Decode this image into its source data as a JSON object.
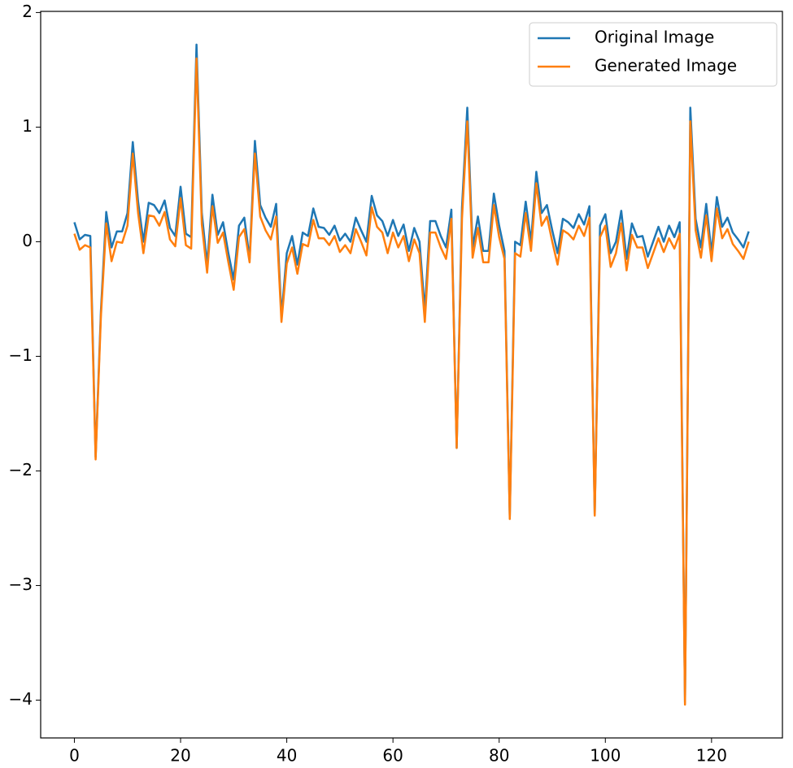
{
  "chart_data": {
    "type": "line",
    "x": [
      0,
      1,
      2,
      3,
      4,
      5,
      6,
      7,
      8,
      9,
      10,
      11,
      12,
      13,
      14,
      15,
      16,
      17,
      18,
      19,
      20,
      21,
      22,
      23,
      24,
      25,
      26,
      27,
      28,
      29,
      30,
      31,
      32,
      33,
      34,
      35,
      36,
      37,
      38,
      39,
      40,
      41,
      42,
      43,
      44,
      45,
      46,
      47,
      48,
      49,
      50,
      51,
      52,
      53,
      54,
      55,
      56,
      57,
      58,
      59,
      60,
      61,
      62,
      63,
      64,
      65,
      66,
      67,
      68,
      69,
      70,
      71,
      72,
      73,
      74,
      75,
      76,
      77,
      78,
      79,
      80,
      81,
      82,
      83,
      84,
      85,
      86,
      87,
      88,
      89,
      90,
      91,
      92,
      93,
      94,
      95,
      96,
      97,
      98,
      99,
      100,
      101,
      102,
      103,
      104,
      105,
      106,
      107,
      108,
      109,
      110,
      111,
      112,
      113,
      114,
      115,
      116,
      117,
      118,
      119,
      120,
      121,
      122,
      123,
      124,
      125,
      126,
      127
    ],
    "series": [
      {
        "name": "Original Image",
        "color": "#1f77b4",
        "values": [
          0.17,
          0.02,
          0.06,
          0.05,
          -1.88,
          -0.6,
          0.26,
          -0.05,
          0.09,
          0.09,
          0.25,
          0.87,
          0.35,
          0.0,
          0.34,
          0.32,
          0.25,
          0.36,
          0.12,
          0.05,
          0.48,
          0.07,
          0.04,
          1.72,
          0.25,
          -0.2,
          0.41,
          0.06,
          0.17,
          -0.1,
          -0.33,
          0.14,
          0.21,
          -0.15,
          0.88,
          0.32,
          0.21,
          0.13,
          0.33,
          -0.65,
          -0.1,
          0.05,
          -0.2,
          0.08,
          0.05,
          0.29,
          0.13,
          0.12,
          0.06,
          0.14,
          0.01,
          0.07,
          0.0,
          0.21,
          0.1,
          0.0,
          0.4,
          0.23,
          0.18,
          0.05,
          0.19,
          0.05,
          0.15,
          -0.08,
          0.12,
          0.0,
          -0.6,
          0.18,
          0.18,
          0.05,
          -0.05,
          0.28,
          -1.8,
          0.3,
          1.17,
          -0.05,
          0.22,
          -0.08,
          -0.08,
          0.42,
          0.14,
          -0.08,
          -2.4,
          0.0,
          -0.03,
          0.35,
          0.0,
          0.61,
          0.25,
          0.32,
          0.1,
          -0.1,
          0.2,
          0.17,
          0.12,
          0.24,
          0.15,
          0.31,
          -2.38,
          0.14,
          0.24,
          -0.1,
          0.0,
          0.27,
          -0.15,
          0.16,
          0.04,
          0.05,
          -0.13,
          0.0,
          0.13,
          0.0,
          0.14,
          0.04,
          0.17,
          -4.02,
          1.17,
          0.2,
          -0.05,
          0.33,
          -0.1,
          0.39,
          0.13,
          0.21,
          0.08,
          0.02,
          -0.05,
          0.09
        ]
      },
      {
        "name": "Generated Image",
        "color": "#ff7f0e",
        "values": [
          0.07,
          -0.07,
          -0.03,
          -0.05,
          -1.9,
          -0.65,
          0.16,
          -0.17,
          0.0,
          -0.01,
          0.14,
          0.77,
          0.25,
          -0.1,
          0.23,
          0.22,
          0.14,
          0.26,
          0.02,
          -0.04,
          0.38,
          -0.03,
          -0.06,
          1.6,
          0.15,
          -0.27,
          0.31,
          -0.01,
          0.08,
          -0.18,
          -0.42,
          0.04,
          0.11,
          -0.18,
          0.77,
          0.22,
          0.1,
          0.02,
          0.22,
          -0.7,
          -0.19,
          -0.05,
          -0.28,
          -0.02,
          -0.04,
          0.19,
          0.03,
          0.03,
          -0.03,
          0.05,
          -0.09,
          -0.03,
          -0.1,
          0.11,
          0.0,
          -0.12,
          0.3,
          0.13,
          0.08,
          -0.1,
          0.08,
          -0.05,
          0.05,
          -0.17,
          0.02,
          -0.1,
          -0.7,
          0.08,
          0.08,
          -0.05,
          -0.15,
          0.2,
          -1.8,
          0.2,
          1.05,
          -0.14,
          0.12,
          -0.18,
          -0.18,
          0.32,
          0.04,
          -0.15,
          -2.42,
          -0.1,
          -0.13,
          0.25,
          -0.08,
          0.51,
          0.14,
          0.22,
          0.0,
          -0.2,
          0.1,
          0.07,
          0.02,
          0.14,
          0.05,
          0.21,
          -2.39,
          0.04,
          0.14,
          -0.22,
          -0.1,
          0.16,
          -0.25,
          0.06,
          -0.05,
          -0.05,
          -0.23,
          -0.1,
          0.03,
          -0.09,
          0.03,
          -0.06,
          0.07,
          -4.04,
          1.05,
          0.1,
          -0.14,
          0.23,
          -0.17,
          0.29,
          0.03,
          0.11,
          -0.02,
          -0.08,
          -0.15,
          0.0
        ]
      }
    ],
    "xlim": [
      -6.35,
      133.35
    ],
    "ylim": [
      -4.33,
      2.01
    ],
    "xticks": [
      0,
      20,
      40,
      60,
      80,
      100,
      120
    ],
    "yticks": [
      {
        "value": -4,
        "label": "−4"
      },
      {
        "value": -3,
        "label": "−3"
      },
      {
        "value": -2,
        "label": "−2"
      },
      {
        "value": -1,
        "label": "−1"
      },
      0,
      1,
      2
    ],
    "grid": false,
    "legend": "upper right"
  }
}
